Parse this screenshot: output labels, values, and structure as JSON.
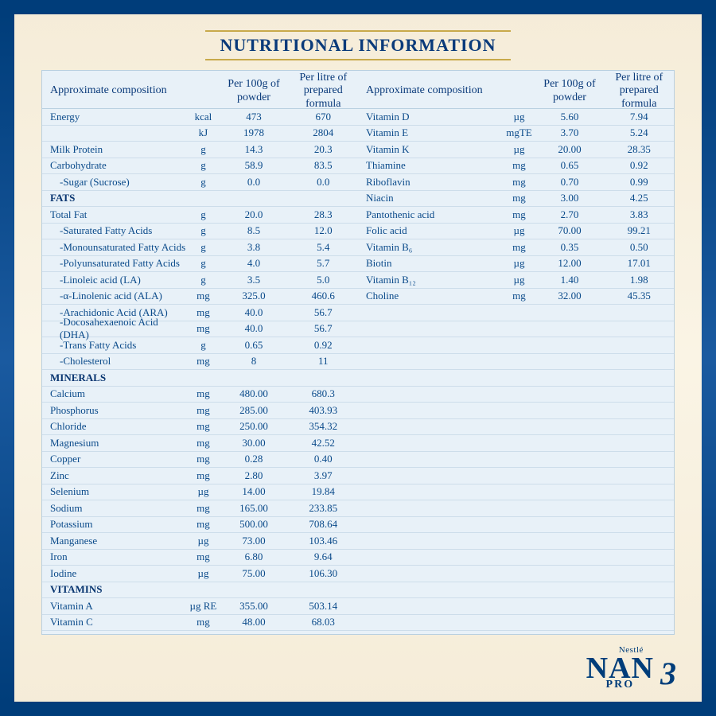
{
  "title": "NUTRITIONAL INFORMATION",
  "headers": {
    "composition": "Approximate composition",
    "per100g": "Per 100g of powder",
    "perLitre": "Per litre of prepared formula"
  },
  "colors": {
    "frame": "#003d7a",
    "panel_bg": "#e8f1f8",
    "text": "#0a4a8a",
    "rule": "#cdddea",
    "gold": "#c8a94a",
    "page_bg": "#f5ecd8"
  },
  "brand": {
    "parent": "Nestlé",
    "name": "NAN",
    "sub": "PRO",
    "stage": "3"
  },
  "left": [
    {
      "label": "Energy",
      "unit": "kcal",
      "v1": "473",
      "v2": "670"
    },
    {
      "label": "",
      "unit": "kJ",
      "v1": "1978",
      "v2": "2804"
    },
    {
      "label": "Milk Protein",
      "unit": "g",
      "v1": "14.3",
      "v2": "20.3"
    },
    {
      "label": "Carbohydrate",
      "unit": "g",
      "v1": "58.9",
      "v2": "83.5"
    },
    {
      "label": "-Sugar (Sucrose)",
      "unit": "g",
      "v1": "0.0",
      "v2": "0.0",
      "indent": true
    },
    {
      "label": "FATS",
      "section": true
    },
    {
      "label": "Total Fat",
      "unit": "g",
      "v1": "20.0",
      "v2": "28.3"
    },
    {
      "label": "-Saturated Fatty Acids",
      "unit": "g",
      "v1": "8.5",
      "v2": "12.0",
      "indent": true
    },
    {
      "label": "-Monounsaturated Fatty Acids",
      "unit": "g",
      "v1": "3.8",
      "v2": "5.4",
      "indent": true
    },
    {
      "label": "-Polyunsaturated Fatty Acids",
      "unit": "g",
      "v1": "4.0",
      "v2": "5.7",
      "indent": true
    },
    {
      "label": "-Linoleic acid (LA)",
      "unit": "g",
      "v1": "3.5",
      "v2": "5.0",
      "indent": true
    },
    {
      "label": "-α-Linolenic acid (ALA)",
      "unit": "mg",
      "v1": "325.0",
      "v2": "460.6",
      "indent": true
    },
    {
      "label": "-Arachidonic Acid (ARA)",
      "unit": "mg",
      "v1": "40.0",
      "v2": "56.7",
      "indent": true
    },
    {
      "label": "-Docosahexaenoic Acid (DHA)",
      "unit": "mg",
      "v1": "40.0",
      "v2": "56.7",
      "indent": true
    },
    {
      "label": "-Trans Fatty Acids",
      "unit": "g",
      "v1": "0.65",
      "v2": "0.92",
      "indent": true
    },
    {
      "label": "-Cholesterol",
      "unit": "mg",
      "v1": "8",
      "v2": "11",
      "indent": true
    },
    {
      "label": "MINERALS",
      "section": true
    },
    {
      "label": "Calcium",
      "unit": "mg",
      "v1": "480.00",
      "v2": "680.3"
    },
    {
      "label": "Phosphorus",
      "unit": "mg",
      "v1": "285.00",
      "v2": "403.93"
    },
    {
      "label": "Chloride",
      "unit": "mg",
      "v1": "250.00",
      "v2": "354.32"
    },
    {
      "label": "Magnesium",
      "unit": "mg",
      "v1": "30.00",
      "v2": "42.52"
    },
    {
      "label": "Copper",
      "unit": "mg",
      "v1": "0.28",
      "v2": "0.40"
    },
    {
      "label": "Zinc",
      "unit": "mg",
      "v1": "2.80",
      "v2": "3.97"
    },
    {
      "label": "Selenium",
      "unit": "µg",
      "v1": "14.00",
      "v2": "19.84"
    },
    {
      "label": "Sodium",
      "unit": "mg",
      "v1": "165.00",
      "v2": "233.85"
    },
    {
      "label": "Potassium",
      "unit": "mg",
      "v1": "500.00",
      "v2": "708.64"
    },
    {
      "label": "Manganese",
      "unit": "µg",
      "v1": "73.00",
      "v2": "103.46"
    },
    {
      "label": "Iron",
      "unit": "mg",
      "v1": "6.80",
      "v2": "9.64"
    },
    {
      "label": "Iodine",
      "unit": "µg",
      "v1": "75.00",
      "v2": "106.30"
    },
    {
      "label": "VITAMINS",
      "section": true
    },
    {
      "label": "Vitamin A",
      "unit": "µg RE",
      "v1": "355.00",
      "v2": "503.14"
    },
    {
      "label": "Vitamin C",
      "unit": "mg",
      "v1": "48.00",
      "v2": "68.03"
    }
  ],
  "right": [
    {
      "label": "Vitamin D",
      "unit": "µg",
      "v1": "5.60",
      "v2": "7.94"
    },
    {
      "label": "Vitamin E",
      "unit": "mgTE",
      "v1": "3.70",
      "v2": "5.24"
    },
    {
      "label": "Vitamin K",
      "unit": "µg",
      "v1": "20.00",
      "v2": "28.35"
    },
    {
      "label": "Thiamine",
      "unit": "mg",
      "v1": "0.65",
      "v2": "0.92"
    },
    {
      "label": "Riboflavin",
      "unit": "mg",
      "v1": "0.70",
      "v2": "0.99"
    },
    {
      "label": "Niacin",
      "unit": "mg",
      "v1": "3.00",
      "v2": "4.25"
    },
    {
      "label": "Pantothenic acid",
      "unit": "mg",
      "v1": "2.70",
      "v2": "3.83"
    },
    {
      "label": "Folic acid",
      "unit": "µg",
      "v1": "70.00",
      "v2": "99.21"
    },
    {
      "label": "Vitamin B₆",
      "unit": "mg",
      "v1": "0.35",
      "v2": "0.50",
      "html": true
    },
    {
      "label": "Biotin",
      "unit": "µg",
      "v1": "12.00",
      "v2": "17.01"
    },
    {
      "label": "Vitamin B₁₂",
      "unit": "µg",
      "v1": "1.40",
      "v2": "1.98",
      "html": true
    },
    {
      "label": "Choline",
      "unit": "mg",
      "v1": "32.00",
      "v2": "45.35"
    }
  ],
  "rightPadRows": 20
}
